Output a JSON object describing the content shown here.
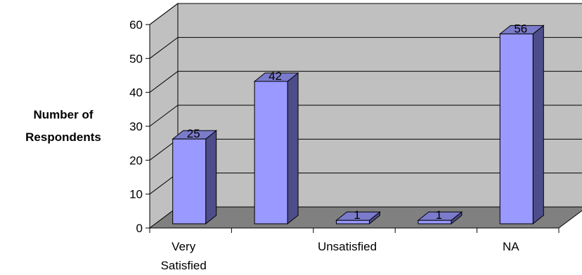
{
  "chart_data": {
    "type": "bar",
    "title": "",
    "ylabel_lines": [
      "Number of",
      "Respondents"
    ],
    "xlabel": "",
    "categories": [
      [
        "Very",
        "Satisfied"
      ],
      [
        ""
      ],
      [
        "Unsatisfied"
      ],
      [
        ""
      ],
      [
        "NA"
      ]
    ],
    "values": [
      25,
      42,
      1,
      1,
      56
    ],
    "ylim": [
      0,
      60
    ],
    "yticks": [
      0,
      10,
      20,
      30,
      40,
      50,
      60
    ],
    "grid": true,
    "legend": "none",
    "colors": {
      "bar_front": "#9999ff",
      "bar_side": "#4d4d8a",
      "bar_top": "#7b7bcc",
      "wall": "#c0c0c0",
      "floor": "#808080"
    }
  }
}
